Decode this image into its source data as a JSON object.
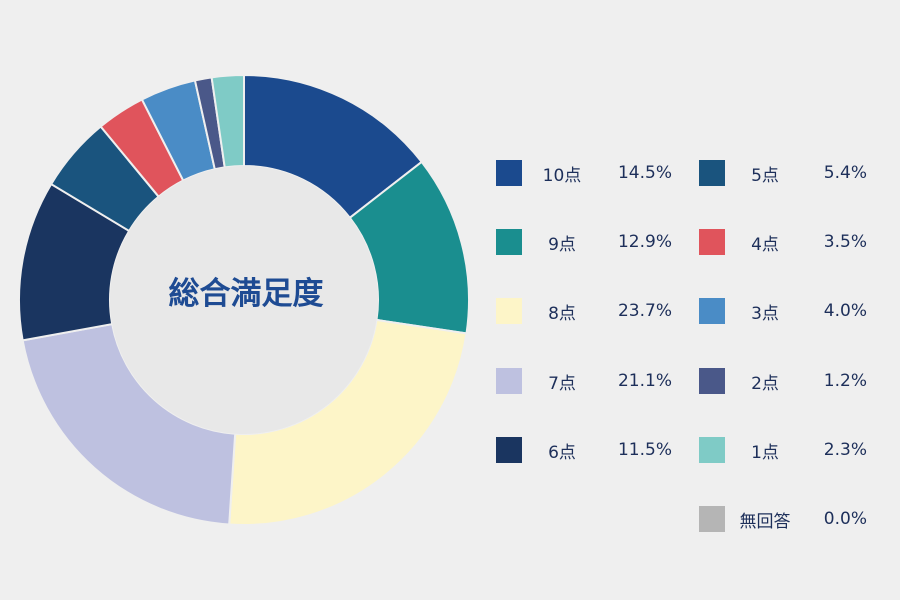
{
  "chart_data": {
    "type": "donut",
    "title": "総合満足度",
    "slices": [
      {
        "label": "10点",
        "value": 14.5,
        "display": "14.5%",
        "color": "#1b4a8e"
      },
      {
        "label": "9点",
        "value": 12.9,
        "display": "12.9%",
        "color": "#1a8e8f"
      },
      {
        "label": "8点",
        "value": 23.7,
        "display": "23.7%",
        "color": "#fdf5c8"
      },
      {
        "label": "7点",
        "value": 21.1,
        "display": "21.1%",
        "color": "#bec1e0"
      },
      {
        "label": "6点",
        "value": 11.5,
        "display": "11.5%",
        "color": "#1a3560"
      },
      {
        "label": "5点",
        "value": 5.4,
        "display": "5.4%",
        "color": "#1a547e"
      },
      {
        "label": "4点",
        "value": 3.5,
        "display": "3.5%",
        "color": "#e0545c"
      },
      {
        "label": "3点",
        "value": 4.0,
        "display": "4.0%",
        "color": "#4a8cc6"
      },
      {
        "label": "2点",
        "value": 1.2,
        "display": "1.2%",
        "color": "#4a5889"
      },
      {
        "label": "1点",
        "value": 2.3,
        "display": "2.3%",
        "color": "#7fcbc6"
      },
      {
        "label": "無回答",
        "value": 0.0,
        "display": "0.0%",
        "color": "#b5b5b5"
      }
    ],
    "center_fill": "#e8e8e8",
    "legend_position": "right"
  }
}
